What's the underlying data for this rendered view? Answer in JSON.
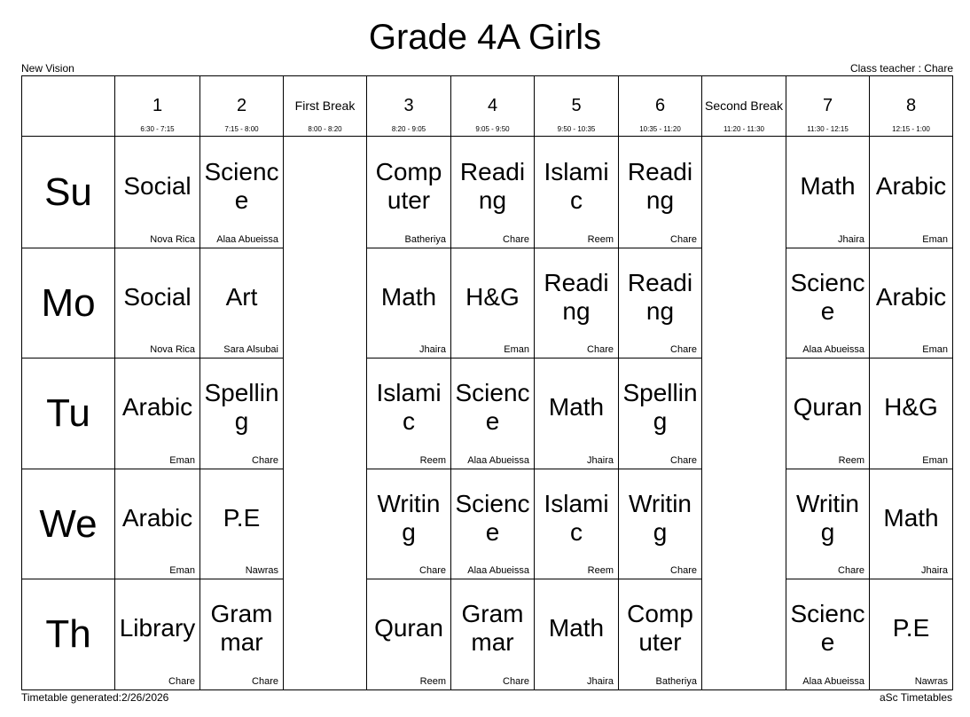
{
  "header": {
    "title": "Grade 4A Girls",
    "school": "New Vision",
    "class_teacher": "Class teacher : Chare"
  },
  "columns": [
    {
      "label": "1",
      "time": "6:30 - 7:15"
    },
    {
      "label": "2",
      "time": "7:15 - 8:00"
    },
    {
      "label": "First Break",
      "time": "8:00 - 8:20"
    },
    {
      "label": "3",
      "time": "8:20 - 9:05"
    },
    {
      "label": "4",
      "time": "9:05 - 9:50"
    },
    {
      "label": "5",
      "time": "9:50 - 10:35"
    },
    {
      "label": "6",
      "time": "10:35 - 11:20"
    },
    {
      "label": "Second Break",
      "time": "11:20 - 11:30"
    },
    {
      "label": "7",
      "time": "11:30 - 12:15"
    },
    {
      "label": "8",
      "time": "12:15 - 1:00"
    }
  ],
  "days": [
    {
      "day": "Su",
      "cells": [
        {
          "subject": "Social",
          "teacher": "Nova Rica"
        },
        {
          "subject": "Science",
          "teacher": "Alaa Abueissa"
        },
        {
          "subject": "Computer",
          "teacher": "Batheriya"
        },
        {
          "subject": "Reading",
          "teacher": "Chare"
        },
        {
          "subject": "Islamic",
          "teacher": "Reem"
        },
        {
          "subject": "Reading",
          "teacher": "Chare"
        },
        {
          "subject": "Math",
          "teacher": "Jhaira"
        },
        {
          "subject": "Arabic",
          "teacher": "Eman"
        }
      ]
    },
    {
      "day": "Mo",
      "cells": [
        {
          "subject": "Social",
          "teacher": "Nova Rica"
        },
        {
          "subject": "Art",
          "teacher": "Sara Alsubai"
        },
        {
          "subject": "Math",
          "teacher": "Jhaira"
        },
        {
          "subject": "H&G",
          "teacher": "Eman"
        },
        {
          "subject": "Reading",
          "teacher": "Chare"
        },
        {
          "subject": "Reading",
          "teacher": "Chare"
        },
        {
          "subject": "Science",
          "teacher": "Alaa Abueissa"
        },
        {
          "subject": "Arabic",
          "teacher": "Eman"
        }
      ]
    },
    {
      "day": "Tu",
      "cells": [
        {
          "subject": "Arabic",
          "teacher": "Eman"
        },
        {
          "subject": "Spelling",
          "teacher": "Chare"
        },
        {
          "subject": "Islamic",
          "teacher": "Reem"
        },
        {
          "subject": "Science",
          "teacher": "Alaa Abueissa"
        },
        {
          "subject": "Math",
          "teacher": "Jhaira"
        },
        {
          "subject": "Spelling",
          "teacher": "Chare"
        },
        {
          "subject": "Quran",
          "teacher": "Reem"
        },
        {
          "subject": "H&G",
          "teacher": "Eman"
        }
      ]
    },
    {
      "day": "We",
      "cells": [
        {
          "subject": "Arabic",
          "teacher": "Eman"
        },
        {
          "subject": "P.E",
          "teacher": "Nawras"
        },
        {
          "subject": "Writing",
          "teacher": "Chare"
        },
        {
          "subject": "Science",
          "teacher": "Alaa Abueissa"
        },
        {
          "subject": "Islamic",
          "teacher": "Reem"
        },
        {
          "subject": "Writing",
          "teacher": "Chare"
        },
        {
          "subject": "Writing",
          "teacher": "Chare"
        },
        {
          "subject": "Math",
          "teacher": "Jhaira"
        }
      ]
    },
    {
      "day": "Th",
      "cells": [
        {
          "subject": "Library",
          "teacher": "Chare"
        },
        {
          "subject": "Grammar",
          "teacher": "Chare"
        },
        {
          "subject": "Quran",
          "teacher": "Reem"
        },
        {
          "subject": "Grammar",
          "teacher": "Chare"
        },
        {
          "subject": "Math",
          "teacher": "Jhaira"
        },
        {
          "subject": "Computer",
          "teacher": "Batheriya"
        },
        {
          "subject": "Science",
          "teacher": "Alaa Abueissa"
        },
        {
          "subject": "P.E",
          "teacher": "Nawras"
        }
      ]
    }
  ],
  "footer": {
    "generated": "Timetable generated:2/26/2026",
    "software": "aSc Timetables"
  }
}
